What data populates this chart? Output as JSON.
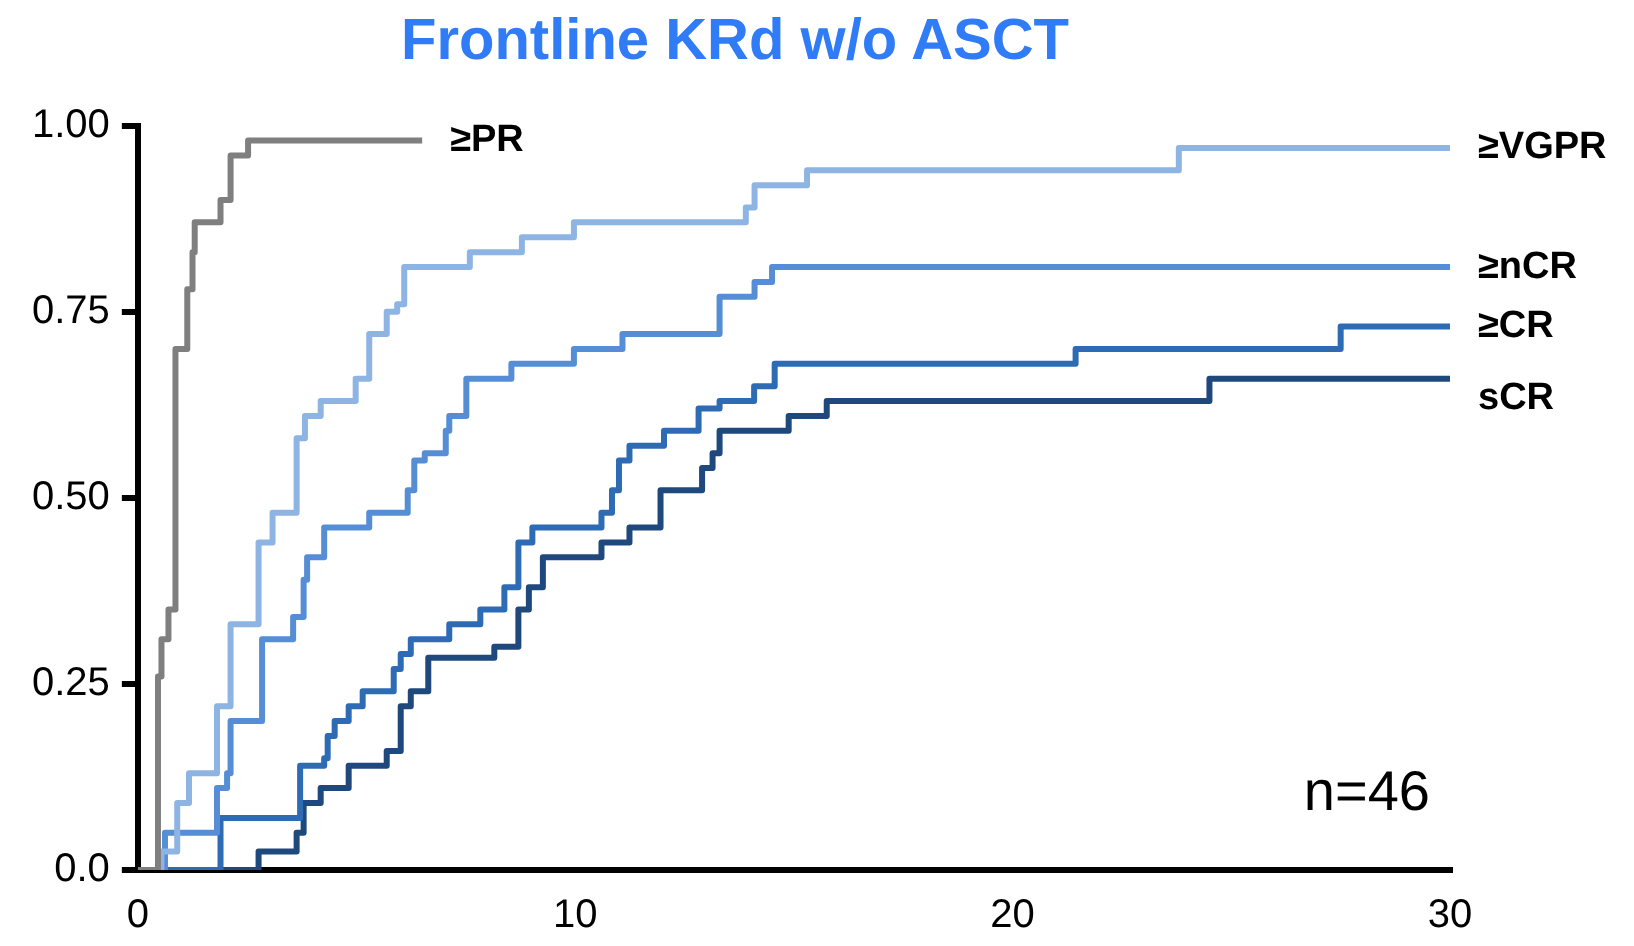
{
  "chart_data": {
    "type": "step",
    "title": "Frontline KRd w/o ASCT",
    "xlim": [
      0,
      30
    ],
    "xticks": [
      0,
      10,
      20,
      30
    ],
    "ylim": [
      0,
      1
    ],
    "yticks": [
      {
        "value": 0,
        "label": "0.0"
      },
      {
        "value": 0.25,
        "label": "0.25"
      },
      {
        "value": 0.5,
        "label": "0.50"
      },
      {
        "value": 0.75,
        "label": "0.75"
      },
      {
        "value": 1,
        "label": "1.00"
      }
    ],
    "grid": false,
    "legend": false,
    "marker": "none",
    "line_style": "solid",
    "annotations": [
      "n=46"
    ],
    "series": [
      {
        "name": "≥PR",
        "color": "#7f7f7f",
        "x": [
          0,
          0.46,
          0.54,
          0.7,
          0.86,
          1.13,
          1.25,
          1.3,
          1.89,
          2.12,
          2.52,
          6.5
        ],
        "values": [
          0,
          0.26,
          0.31,
          0.35,
          0.7,
          0.78,
          0.83,
          0.87,
          0.9,
          0.96,
          0.98,
          0.98
        ]
      },
      {
        "name": "≥VGPR",
        "color": "#8db4e2",
        "x": [
          0,
          0.54,
          0.9,
          1.17,
          1.81,
          2.12,
          2.76,
          3.08,
          3.63,
          3.82,
          4.18,
          4.98,
          5.29,
          5.69,
          5.93,
          6.09,
          7.59,
          8.78,
          9.97,
          13.9,
          14.1,
          15.3,
          23.8,
          30
        ],
        "values": [
          0,
          0.025,
          0.09,
          0.13,
          0.22,
          0.33,
          0.44,
          0.48,
          0.58,
          0.61,
          0.63,
          0.66,
          0.72,
          0.75,
          0.76,
          0.81,
          0.83,
          0.85,
          0.87,
          0.89,
          0.92,
          0.94,
          0.97,
          0.97
        ]
      },
      {
        "name": "≥nCR",
        "color": "#558ed5",
        "x": [
          0,
          0.62,
          1.81,
          2.04,
          2.12,
          2.84,
          3.55,
          3.79,
          3.87,
          4.26,
          5.29,
          6.17,
          6.32,
          6.56,
          7.04,
          7.12,
          7.51,
          8.54,
          9.97,
          11.08,
          13.3,
          14.1,
          14.5,
          30
        ],
        "values": [
          0,
          0.05,
          0.11,
          0.13,
          0.2,
          0.31,
          0.34,
          0.39,
          0.42,
          0.46,
          0.48,
          0.51,
          0.55,
          0.56,
          0.59,
          0.61,
          0.66,
          0.68,
          0.7,
          0.72,
          0.77,
          0.79,
          0.81,
          0.81
        ]
      },
      {
        "name": "≥CR",
        "color": "#2e6bb5",
        "x": [
          0,
          1.89,
          3.71,
          4.26,
          4.34,
          4.5,
          4.82,
          5.14,
          5.85,
          6.01,
          6.24,
          7.12,
          7.83,
          8.38,
          8.7,
          9.02,
          10.6,
          10.84,
          11.0,
          11.24,
          12.03,
          12.82,
          13.3,
          14.09,
          14.56,
          21.44,
          27.5,
          30
        ],
        "values": [
          0,
          0.07,
          0.14,
          0.15,
          0.18,
          0.2,
          0.22,
          0.24,
          0.27,
          0.29,
          0.31,
          0.33,
          0.35,
          0.38,
          0.44,
          0.46,
          0.48,
          0.51,
          0.55,
          0.57,
          0.59,
          0.62,
          0.63,
          0.65,
          0.68,
          0.7,
          0.73,
          0.73
        ]
      },
      {
        "name": "sCR",
        "color": "#1f497d",
        "x": [
          0,
          2.76,
          3.63,
          3.79,
          4.18,
          4.82,
          5.69,
          6.01,
          6.24,
          6.64,
          8.15,
          8.7,
          8.94,
          9.26,
          10.6,
          11.24,
          11.95,
          12.9,
          13.14,
          13.3,
          14.88,
          15.75,
          24.5,
          30
        ],
        "values": [
          0,
          0.025,
          0.05,
          0.09,
          0.11,
          0.14,
          0.16,
          0.22,
          0.24,
          0.285,
          0.3,
          0.35,
          0.38,
          0.42,
          0.44,
          0.46,
          0.51,
          0.54,
          0.56,
          0.59,
          0.61,
          0.63,
          0.66,
          0.66
        ]
      }
    ]
  }
}
